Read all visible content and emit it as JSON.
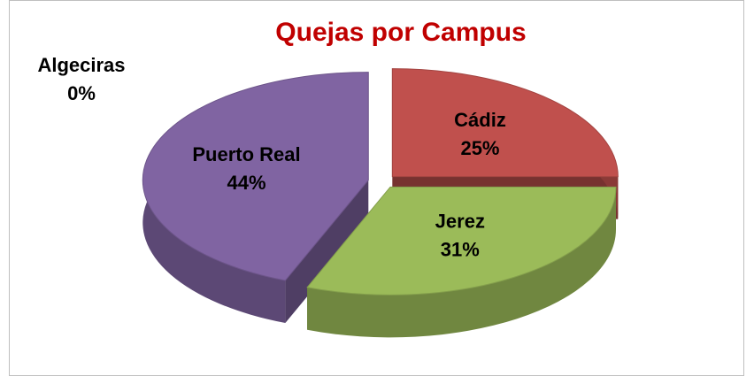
{
  "chart_data": {
    "type": "pie3d",
    "title": "Quejas por Campus",
    "categories": [
      "Cádiz",
      "Jerez",
      "Puerto Real",
      "Algeciras"
    ],
    "values": [
      25,
      31,
      44,
      0
    ],
    "value_labels": [
      "25%",
      "31%",
      "44%",
      "0%"
    ],
    "colors": [
      "#c0504d",
      "#9bbb59",
      "#8064a2",
      "#4f81bd"
    ]
  }
}
